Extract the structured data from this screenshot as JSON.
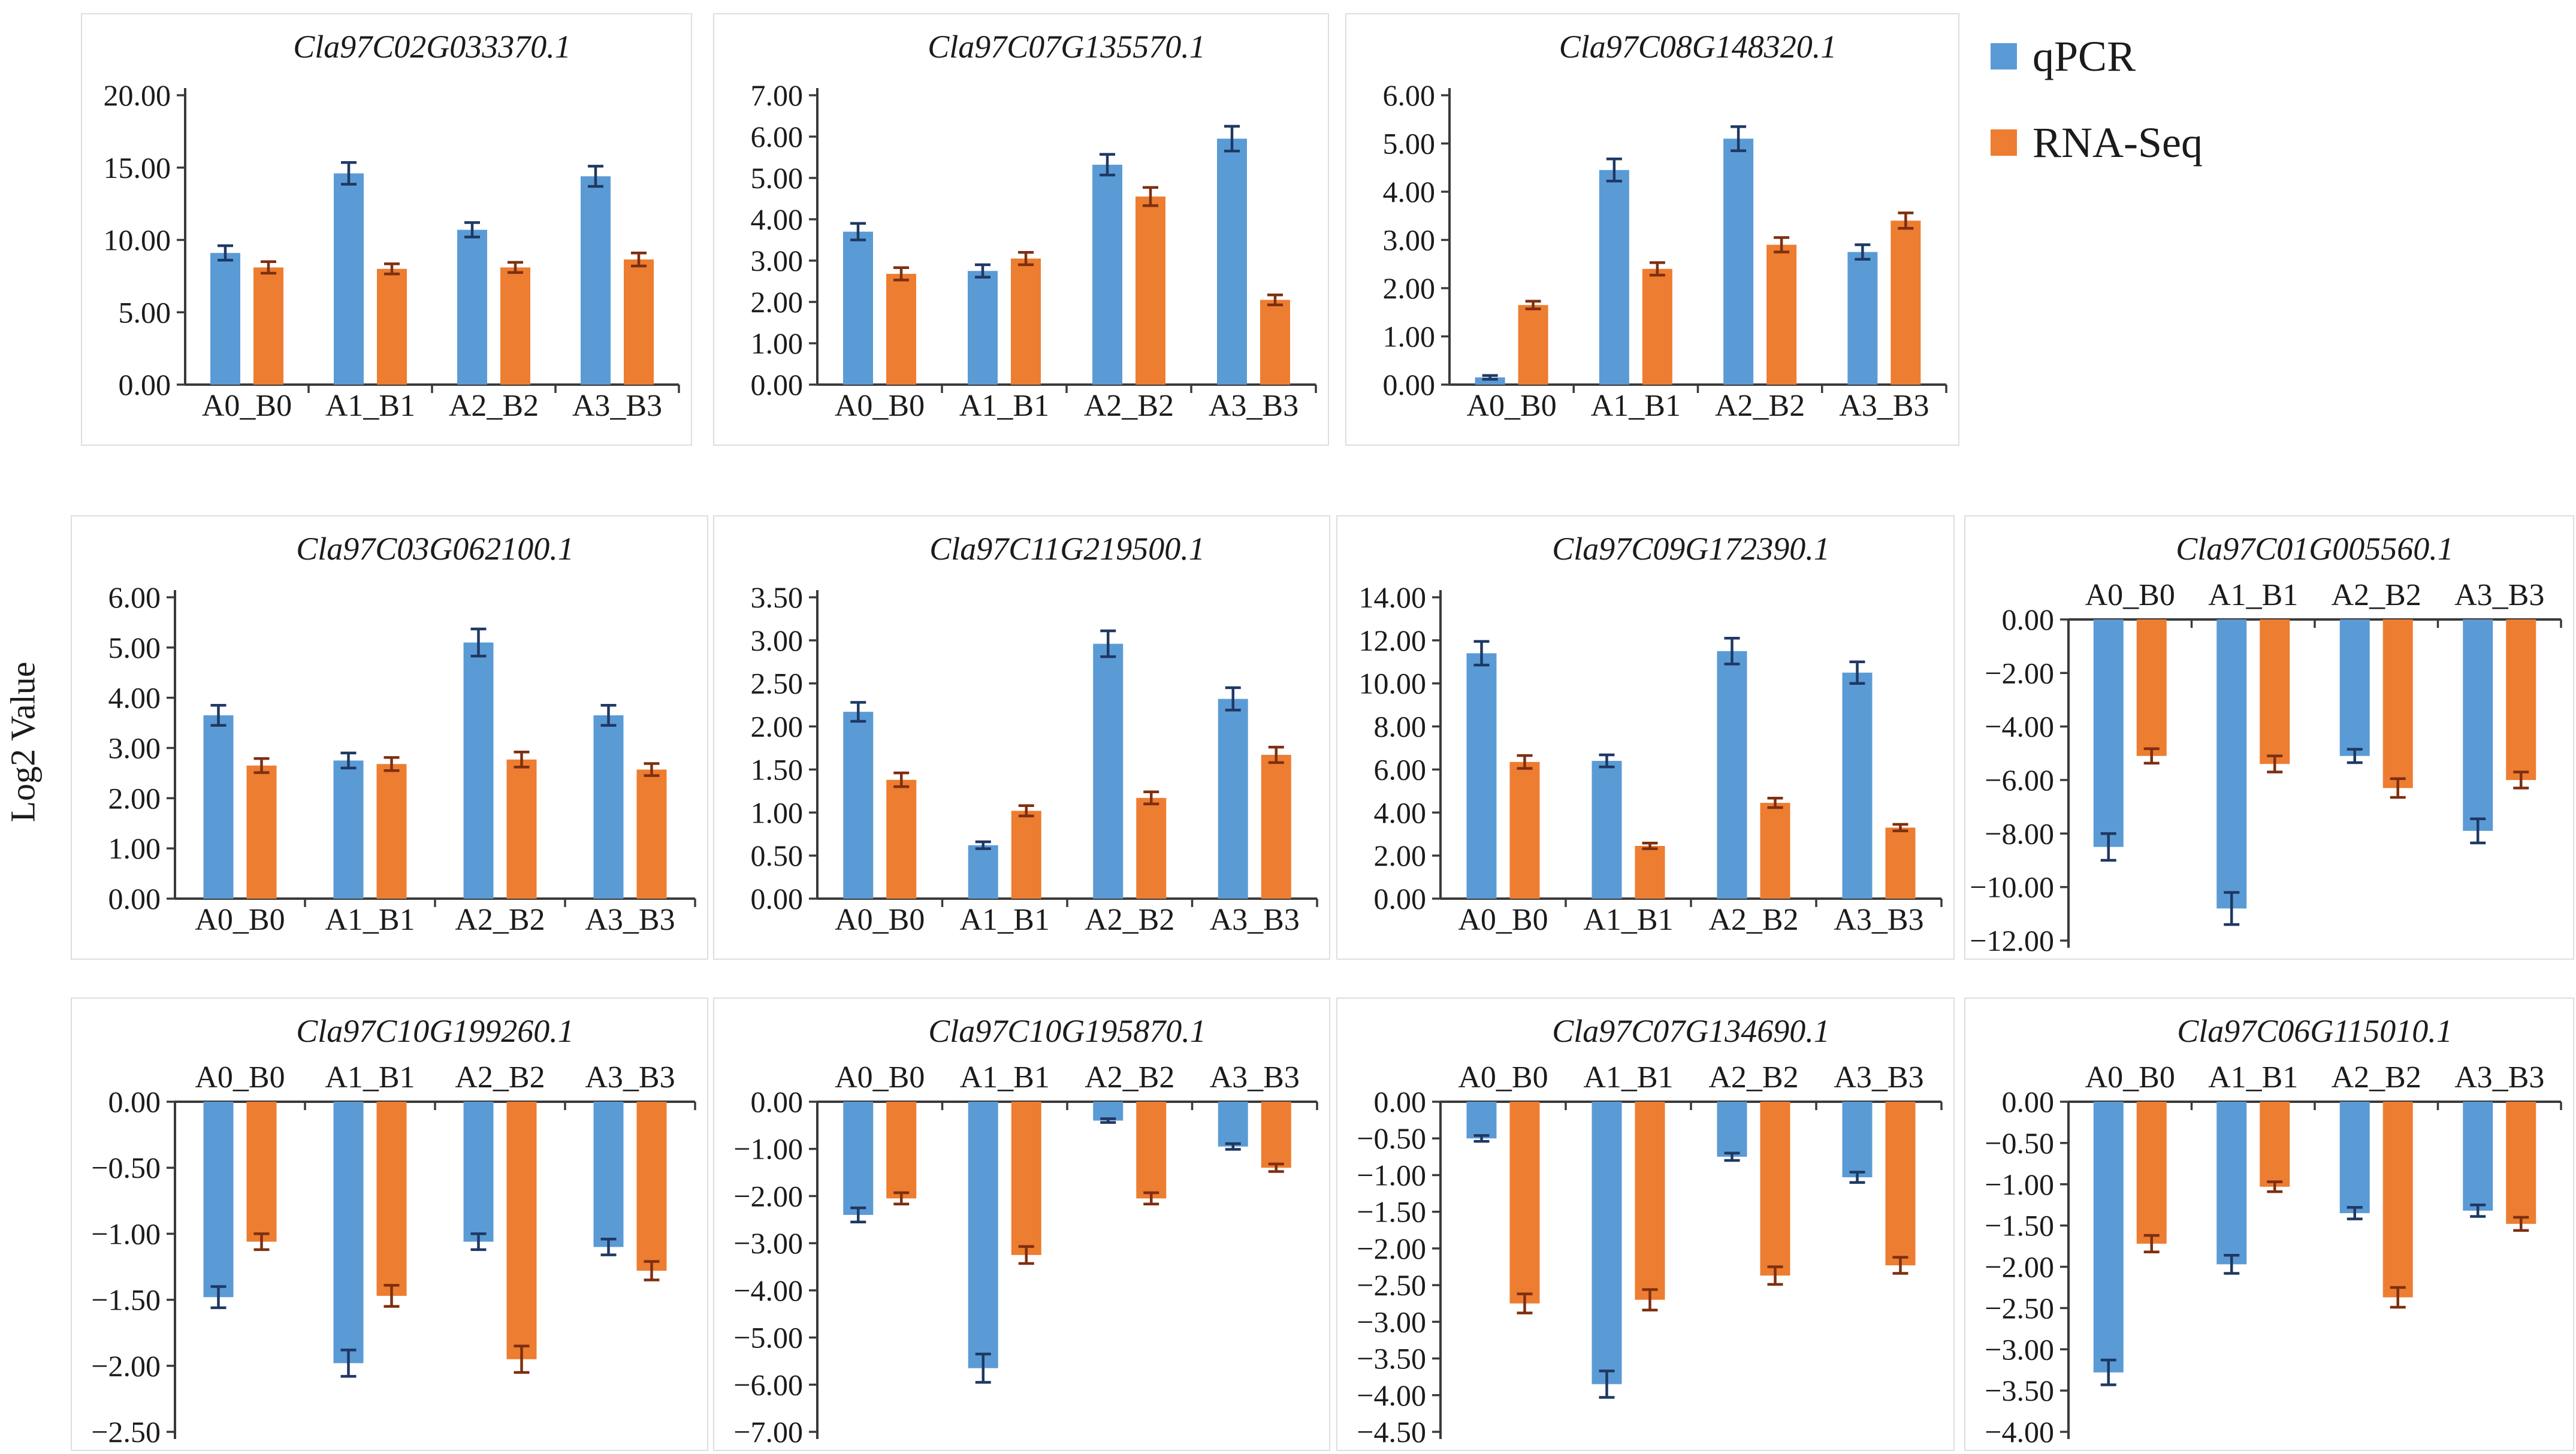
{
  "figure": {
    "ylabel": "Log2 Value",
    "legend": [
      {
        "label": "qPCR",
        "color": "#5B9BD5",
        "error_color": "#1F3864"
      },
      {
        "label": "RNA-Seq",
        "color": "#ED7D31",
        "error_color": "#7E2F10"
      }
    ],
    "axis_color": "#3a3a3a",
    "text_color": "#1b1b1b"
  },
  "chart_data": [
    {
      "type": "bar",
      "title": "Cla97C02G033370.1",
      "categories": [
        "A0_B0",
        "A1_B1",
        "A2_B2",
        "A3_B3"
      ],
      "series": [
        {
          "name": "qPCR",
          "values": [
            9.1,
            14.6,
            10.7,
            14.4
          ],
          "errors": [
            0.5,
            0.75,
            0.5,
            0.7
          ]
        },
        {
          "name": "RNA-Seq",
          "values": [
            8.1,
            8.0,
            8.1,
            8.65
          ],
          "errors": [
            0.4,
            0.35,
            0.35,
            0.45
          ]
        }
      ],
      "ylim": [
        0,
        20
      ],
      "ystep": 5,
      "grid": false,
      "legend_position": "none"
    },
    {
      "type": "bar",
      "title": "Cla97C07G135570.1",
      "categories": [
        "A0_B0",
        "A1_B1",
        "A2_B2",
        "A3_B3"
      ],
      "series": [
        {
          "name": "qPCR",
          "values": [
            3.7,
            2.75,
            5.32,
            5.95
          ],
          "errors": [
            0.2,
            0.15,
            0.25,
            0.3
          ]
        },
        {
          "name": "RNA-Seq",
          "values": [
            2.68,
            3.05,
            4.55,
            2.05
          ],
          "errors": [
            0.15,
            0.15,
            0.22,
            0.12
          ]
        }
      ],
      "ylim": [
        0,
        7
      ],
      "ystep": 1,
      "grid": false,
      "legend_position": "none"
    },
    {
      "type": "bar",
      "title": "Cla97C08G148320.1",
      "categories": [
        "A0_B0",
        "A1_B1",
        "A2_B2",
        "A3_B3"
      ],
      "series": [
        {
          "name": "qPCR",
          "values": [
            0.15,
            4.45,
            5.1,
            2.75
          ],
          "errors": [
            0.04,
            0.23,
            0.25,
            0.15
          ]
        },
        {
          "name": "RNA-Seq",
          "values": [
            1.65,
            2.4,
            2.9,
            3.4
          ],
          "errors": [
            0.08,
            0.13,
            0.15,
            0.16
          ]
        }
      ],
      "ylim": [
        0,
        6
      ],
      "ystep": 1,
      "grid": false,
      "legend_position": "none"
    },
    {
      "type": "bar",
      "title": "Cla97C03G062100.1",
      "categories": [
        "A0_B0",
        "A1_B1",
        "A2_B2",
        "A3_B3"
      ],
      "series": [
        {
          "name": "qPCR",
          "values": [
            3.65,
            2.75,
            5.1,
            3.65
          ],
          "errors": [
            0.2,
            0.15,
            0.27,
            0.2
          ]
        },
        {
          "name": "RNA-Seq",
          "values": [
            2.65,
            2.68,
            2.77,
            2.57
          ],
          "errors": [
            0.14,
            0.13,
            0.15,
            0.12
          ]
        }
      ],
      "ylim": [
        0,
        6
      ],
      "ystep": 1,
      "grid": false,
      "legend_position": "none"
    },
    {
      "type": "bar",
      "title": "Cla97C11G219500.1",
      "categories": [
        "A0_B0",
        "A1_B1",
        "A2_B2",
        "A3_B3"
      ],
      "series": [
        {
          "name": "qPCR",
          "values": [
            2.17,
            0.62,
            2.96,
            2.32
          ],
          "errors": [
            0.11,
            0.04,
            0.15,
            0.13
          ]
        },
        {
          "name": "RNA-Seq",
          "values": [
            1.38,
            1.02,
            1.17,
            1.67
          ],
          "errors": [
            0.08,
            0.06,
            0.07,
            0.09
          ]
        }
      ],
      "ylim": [
        0,
        3.5
      ],
      "ystep": 0.5,
      "grid": false,
      "legend_position": "none"
    },
    {
      "type": "bar",
      "title": "Cla97C09G172390.1",
      "categories": [
        "A0_B0",
        "A1_B1",
        "A2_B2",
        "A3_B3"
      ],
      "series": [
        {
          "name": "qPCR",
          "values": [
            11.4,
            6.4,
            11.5,
            10.5
          ],
          "errors": [
            0.55,
            0.28,
            0.6,
            0.5
          ]
        },
        {
          "name": "RNA-Seq",
          "values": [
            6.35,
            2.45,
            4.45,
            3.3
          ],
          "errors": [
            0.3,
            0.13,
            0.22,
            0.15
          ]
        }
      ],
      "ylim": [
        0,
        14
      ],
      "ystep": 2,
      "grid": false,
      "legend_position": "none"
    },
    {
      "type": "bar",
      "title": "Cla97C01G005560.1",
      "categories": [
        "A0_B0",
        "A1_B1",
        "A2_B2",
        "A3_B3"
      ],
      "series": [
        {
          "name": "qPCR",
          "values": [
            -8.5,
            -10.8,
            -5.1,
            -7.9
          ],
          "errors": [
            0.5,
            0.6,
            0.25,
            0.45
          ]
        },
        {
          "name": "RNA-Seq",
          "values": [
            -5.1,
            -5.4,
            -6.3,
            -6.0
          ],
          "errors": [
            0.27,
            0.3,
            0.35,
            0.3
          ]
        }
      ],
      "ylim": [
        -12,
        0
      ],
      "ystep": 2,
      "grid": false,
      "legend_position": "none"
    },
    {
      "type": "bar",
      "title": "Cla97C10G199260.1",
      "categories": [
        "A0_B0",
        "A1_B1",
        "A2_B2",
        "A3_B3"
      ],
      "series": [
        {
          "name": "qPCR",
          "values": [
            -1.48,
            -1.98,
            -1.06,
            -1.1
          ],
          "errors": [
            0.08,
            0.1,
            0.06,
            0.06
          ]
        },
        {
          "name": "RNA-Seq",
          "values": [
            -1.06,
            -1.47,
            -1.95,
            -1.28
          ],
          "errors": [
            0.06,
            0.08,
            0.1,
            0.07
          ]
        }
      ],
      "ylim": [
        -2.5,
        0
      ],
      "ystep": 0.5,
      "grid": false,
      "legend_position": "none"
    },
    {
      "type": "bar",
      "title": "Cla97C10G195870.1",
      "categories": [
        "A0_B0",
        "A1_B1",
        "A2_B2",
        "A3_B3"
      ],
      "series": [
        {
          "name": "qPCR",
          "values": [
            -2.4,
            -5.65,
            -0.4,
            -0.95
          ],
          "errors": [
            0.15,
            0.3,
            0.04,
            0.06
          ]
        },
        {
          "name": "RNA-Seq",
          "values": [
            -2.05,
            -3.25,
            -2.05,
            -1.4
          ],
          "errors": [
            0.12,
            0.18,
            0.12,
            0.08
          ]
        }
      ],
      "ylim": [
        -7,
        0
      ],
      "ystep": 1,
      "grid": false,
      "legend_position": "none"
    },
    {
      "type": "bar",
      "title": "Cla97C07G134690.1",
      "categories": [
        "A0_B0",
        "A1_B1",
        "A2_B2",
        "A3_B3"
      ],
      "series": [
        {
          "name": "qPCR",
          "values": [
            -0.5,
            -3.85,
            -0.75,
            -1.03
          ],
          "errors": [
            0.04,
            0.18,
            0.05,
            0.07
          ]
        },
        {
          "name": "RNA-Seq",
          "values": [
            -2.75,
            -2.7,
            -2.37,
            -2.23
          ],
          "errors": [
            0.13,
            0.14,
            0.12,
            0.11
          ]
        }
      ],
      "ylim": [
        -4.5,
        0
      ],
      "ystep": 0.5,
      "grid": false,
      "legend_position": "none"
    },
    {
      "type": "bar",
      "title": "Cla97C06G115010.1",
      "categories": [
        "A0_B0",
        "A1_B1",
        "A2_B2",
        "A3_B3"
      ],
      "series": [
        {
          "name": "qPCR",
          "values": [
            -3.28,
            -1.97,
            -1.35,
            -1.32
          ],
          "errors": [
            0.15,
            0.11,
            0.07,
            0.07
          ]
        },
        {
          "name": "RNA-Seq",
          "values": [
            -1.72,
            -1.03,
            -2.37,
            -1.48
          ],
          "errors": [
            0.1,
            0.06,
            0.12,
            0.08
          ]
        }
      ],
      "ylim": [
        -4,
        0
      ],
      "ystep": 0.5,
      "grid": false,
      "legend_position": "none"
    }
  ]
}
